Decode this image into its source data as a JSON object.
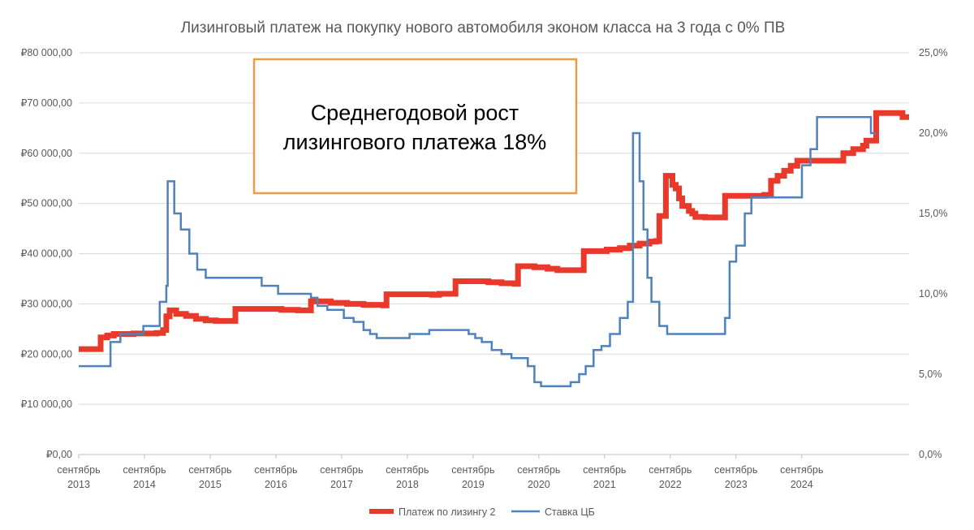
{
  "chart_data": {
    "type": "line",
    "title": "Лизинговый платеж на покупку нового автомобиля эконом класса на 3 года с 0% ПВ",
    "x_ticks": [
      {
        "line1": "сентябрь",
        "line2": "2013",
        "t": 2013.667
      },
      {
        "line1": "сентябрь",
        "line2": "2014",
        "t": 2014.667
      },
      {
        "line1": "сентябрь",
        "line2": "2015",
        "t": 2015.667
      },
      {
        "line1": "сентябрь",
        "line2": "2016",
        "t": 2016.667
      },
      {
        "line1": "сентябрь",
        "line2": "2017",
        "t": 2017.667
      },
      {
        "line1": "сентябрь",
        "line2": "2018",
        "t": 2018.667
      },
      {
        "line1": "сентябрь",
        "line2": "2019",
        "t": 2019.667
      },
      {
        "line1": "сентябрь",
        "line2": "2020",
        "t": 2020.667
      },
      {
        "line1": "сентябрь",
        "line2": "2021",
        "t": 2021.667
      },
      {
        "line1": "сентябрь",
        "line2": "2022",
        "t": 2022.667
      },
      {
        "line1": "сентябрь",
        "line2": "2023",
        "t": 2023.667
      },
      {
        "line1": "сентябрь",
        "line2": "2024",
        "t": 2024.667
      }
    ],
    "x_range": [
      "2013-09",
      "2024-11"
    ],
    "y_left": {
      "range": [
        0,
        80000
      ],
      "ticks": [
        {
          "label": "₽0,00",
          "value": 0
        },
        {
          "label": "₽10 000,00",
          "value": 10000
        },
        {
          "label": "₽20 000,00",
          "value": 20000
        },
        {
          "label": "₽30 000,00",
          "value": 30000
        },
        {
          "label": "₽40 000,00",
          "value": 40000
        },
        {
          "label": "₽50 000,00",
          "value": 50000
        },
        {
          "label": "₽60 000,00",
          "value": 60000
        },
        {
          "label": "₽70 000,00",
          "value": 70000
        },
        {
          "label": "₽80 000,00",
          "value": 80000
        }
      ]
    },
    "y_right": {
      "range": [
        0,
        25
      ],
      "ticks": [
        {
          "label": "0,0%",
          "value": 0
        },
        {
          "label": "5,0%",
          "value": 5
        },
        {
          "label": "10,0%",
          "value": 10
        },
        {
          "label": "15,0%",
          "value": 15
        },
        {
          "label": "20,0%",
          "value": 20
        },
        {
          "label": "25,0%",
          "value": 25
        }
      ]
    },
    "grid": true,
    "legend_position": "bottom",
    "series": [
      {
        "name": "Платеж по лизингу 2",
        "axis": "left",
        "color": "#e8392b",
        "step": true,
        "points": [
          [
            2013.667,
            21000
          ],
          [
            2013.95,
            21000
          ],
          [
            2014.0,
            23300
          ],
          [
            2014.1,
            23700
          ],
          [
            2014.2,
            24000
          ],
          [
            2014.5,
            24100
          ],
          [
            2014.85,
            24200
          ],
          [
            2014.95,
            24800
          ],
          [
            2015.0,
            27500
          ],
          [
            2015.05,
            28700
          ],
          [
            2015.15,
            28000
          ],
          [
            2015.3,
            27600
          ],
          [
            2015.45,
            27000
          ],
          [
            2015.6,
            26700
          ],
          [
            2015.75,
            26600
          ],
          [
            2016.0,
            26600
          ],
          [
            2016.05,
            29000
          ],
          [
            2016.5,
            29000
          ],
          [
            2016.75,
            28800
          ],
          [
            2017.0,
            28700
          ],
          [
            2017.15,
            28700
          ],
          [
            2017.2,
            30500
          ],
          [
            2017.5,
            30200
          ],
          [
            2017.75,
            30000
          ],
          [
            2018.0,
            29800
          ],
          [
            2018.3,
            29700
          ],
          [
            2018.35,
            31900
          ],
          [
            2018.8,
            31900
          ],
          [
            2019.05,
            31800
          ],
          [
            2019.15,
            32000
          ],
          [
            2019.35,
            32000
          ],
          [
            2019.4,
            34500
          ],
          [
            2019.7,
            34500
          ],
          [
            2019.9,
            34300
          ],
          [
            2020.1,
            34100
          ],
          [
            2020.3,
            34000
          ],
          [
            2020.35,
            37500
          ],
          [
            2020.6,
            37300
          ],
          [
            2020.8,
            37000
          ],
          [
            2020.95,
            36700
          ],
          [
            2021.0,
            36700
          ],
          [
            2021.3,
            36700
          ],
          [
            2021.35,
            40500
          ],
          [
            2021.55,
            40500
          ],
          [
            2021.7,
            40800
          ],
          [
            2021.9,
            41100
          ],
          [
            2022.05,
            41600
          ],
          [
            2022.2,
            42000
          ],
          [
            2022.35,
            42400
          ],
          [
            2022.45,
            42500
          ],
          [
            2022.5,
            47500
          ],
          [
            2022.55,
            47500
          ],
          [
            2022.6,
            55500
          ],
          [
            2022.65,
            55500
          ],
          [
            2022.7,
            53700
          ],
          [
            2022.75,
            53000
          ],
          [
            2022.8,
            51000
          ],
          [
            2022.85,
            49500
          ],
          [
            2022.95,
            48500
          ],
          [
            2023.0,
            48000
          ],
          [
            2023.05,
            47300
          ],
          [
            2023.2,
            47200
          ],
          [
            2023.45,
            47200
          ],
          [
            2023.5,
            51500
          ],
          [
            2024.0,
            51500
          ],
          [
            2024.1,
            51700
          ],
          [
            2024.17,
            51700
          ],
          [
            2024.2,
            54500
          ],
          [
            2024.3,
            55500
          ],
          [
            2024.4,
            56500
          ],
          [
            2024.5,
            57500
          ],
          [
            2024.6,
            58500
          ],
          [
            2024.8,
            58500
          ],
          [
            2025.0,
            58500
          ],
          [
            2025.2,
            58500
          ],
          [
            2025.27,
            58500
          ],
          [
            2025.3,
            60000
          ],
          [
            2025.45,
            60800
          ],
          [
            2025.6,
            61500
          ],
          [
            2025.65,
            62500
          ],
          [
            2025.75,
            62500
          ],
          [
            2025.8,
            68000
          ],
          [
            2026.1,
            68000
          ],
          [
            2026.2,
            67200
          ],
          [
            2026.3,
            67200
          ]
        ]
      },
      {
        "name": "Ставка ЦБ",
        "axis": "right",
        "color": "#4f81bd",
        "step": true,
        "points": [
          [
            2013.667,
            5.5
          ],
          [
            2014.15,
            5.5
          ],
          [
            2014.15,
            7.0
          ],
          [
            2014.3,
            7.0
          ],
          [
            2014.3,
            7.5
          ],
          [
            2014.65,
            7.5
          ],
          [
            2014.65,
            8.0
          ],
          [
            2014.9,
            8.0
          ],
          [
            2014.9,
            9.5
          ],
          [
            2015.0,
            9.5
          ],
          [
            2015.0,
            10.5
          ],
          [
            2015.02,
            10.5
          ],
          [
            2015.02,
            17.0
          ],
          [
            2015.12,
            17.0
          ],
          [
            2015.12,
            15.0
          ],
          [
            2015.22,
            15.0
          ],
          [
            2015.22,
            14.0
          ],
          [
            2015.35,
            14.0
          ],
          [
            2015.35,
            12.5
          ],
          [
            2015.47,
            12.5
          ],
          [
            2015.47,
            11.5
          ],
          [
            2015.6,
            11.5
          ],
          [
            2015.6,
            11.0
          ],
          [
            2016.45,
            11.0
          ],
          [
            2016.45,
            10.5
          ],
          [
            2016.7,
            10.5
          ],
          [
            2016.7,
            10.0
          ],
          [
            2017.2,
            10.0
          ],
          [
            2017.2,
            9.75
          ],
          [
            2017.3,
            9.75
          ],
          [
            2017.3,
            9.25
          ],
          [
            2017.45,
            9.25
          ],
          [
            2017.45,
            9.0
          ],
          [
            2017.7,
            9.0
          ],
          [
            2017.7,
            8.5
          ],
          [
            2017.85,
            8.5
          ],
          [
            2017.85,
            8.25
          ],
          [
            2018.0,
            8.25
          ],
          [
            2018.0,
            7.75
          ],
          [
            2018.1,
            7.75
          ],
          [
            2018.1,
            7.5
          ],
          [
            2018.2,
            7.5
          ],
          [
            2018.2,
            7.25
          ],
          [
            2018.7,
            7.25
          ],
          [
            2018.7,
            7.5
          ],
          [
            2019.0,
            7.5
          ],
          [
            2019.0,
            7.75
          ],
          [
            2019.6,
            7.75
          ],
          [
            2019.6,
            7.5
          ],
          [
            2019.7,
            7.5
          ],
          [
            2019.7,
            7.25
          ],
          [
            2019.8,
            7.25
          ],
          [
            2019.8,
            7.0
          ],
          [
            2019.95,
            7.0
          ],
          [
            2019.95,
            6.5
          ],
          [
            2020.1,
            6.5
          ],
          [
            2020.1,
            6.25
          ],
          [
            2020.25,
            6.25
          ],
          [
            2020.25,
            6.0
          ],
          [
            2020.5,
            6.0
          ],
          [
            2020.5,
            5.5
          ],
          [
            2020.6,
            5.5
          ],
          [
            2020.6,
            4.5
          ],
          [
            2020.7,
            4.5
          ],
          [
            2020.7,
            4.25
          ],
          [
            2021.15,
            4.25
          ],
          [
            2021.15,
            4.5
          ],
          [
            2021.28,
            4.5
          ],
          [
            2021.28,
            5.0
          ],
          [
            2021.38,
            5.0
          ],
          [
            2021.38,
            5.5
          ],
          [
            2021.5,
            5.5
          ],
          [
            2021.5,
            6.5
          ],
          [
            2021.62,
            6.5
          ],
          [
            2021.62,
            6.75
          ],
          [
            2021.75,
            6.75
          ],
          [
            2021.75,
            7.5
          ],
          [
            2021.9,
            7.5
          ],
          [
            2021.9,
            8.5
          ],
          [
            2022.02,
            8.5
          ],
          [
            2022.02,
            9.5
          ],
          [
            2022.1,
            9.5
          ],
          [
            2022.1,
            20.0
          ],
          [
            2022.2,
            20.0
          ],
          [
            2022.2,
            17.0
          ],
          [
            2022.26,
            17.0
          ],
          [
            2022.26,
            14.0
          ],
          [
            2022.32,
            14.0
          ],
          [
            2022.32,
            11.0
          ],
          [
            2022.38,
            11.0
          ],
          [
            2022.38,
            9.5
          ],
          [
            2022.5,
            9.5
          ],
          [
            2022.5,
            8.0
          ],
          [
            2022.62,
            8.0
          ],
          [
            2022.62,
            7.5
          ],
          [
            2023.5,
            7.5
          ],
          [
            2023.5,
            8.5
          ],
          [
            2023.57,
            8.5
          ],
          [
            2023.57,
            12.0
          ],
          [
            2023.67,
            12.0
          ],
          [
            2023.67,
            13.0
          ],
          [
            2023.8,
            13.0
          ],
          [
            2023.8,
            15.0
          ],
          [
            2023.9,
            15.0
          ],
          [
            2023.9,
            16.0
          ],
          [
            2024.67,
            16.0
          ],
          [
            2024.67,
            18.0
          ],
          [
            2024.8,
            18.0
          ],
          [
            2024.8,
            19.0
          ],
          [
            2024.9,
            19.0
          ],
          [
            2024.9,
            21.0
          ],
          [
            2025.72,
            21.0
          ],
          [
            2025.72,
            20.0
          ],
          [
            2025.8,
            20.0
          ]
        ]
      }
    ],
    "annotation": {
      "line1": "Среднегодовой рост",
      "line2": "лизингового платежа 18%",
      "border_color": "#eb9b4c"
    }
  }
}
